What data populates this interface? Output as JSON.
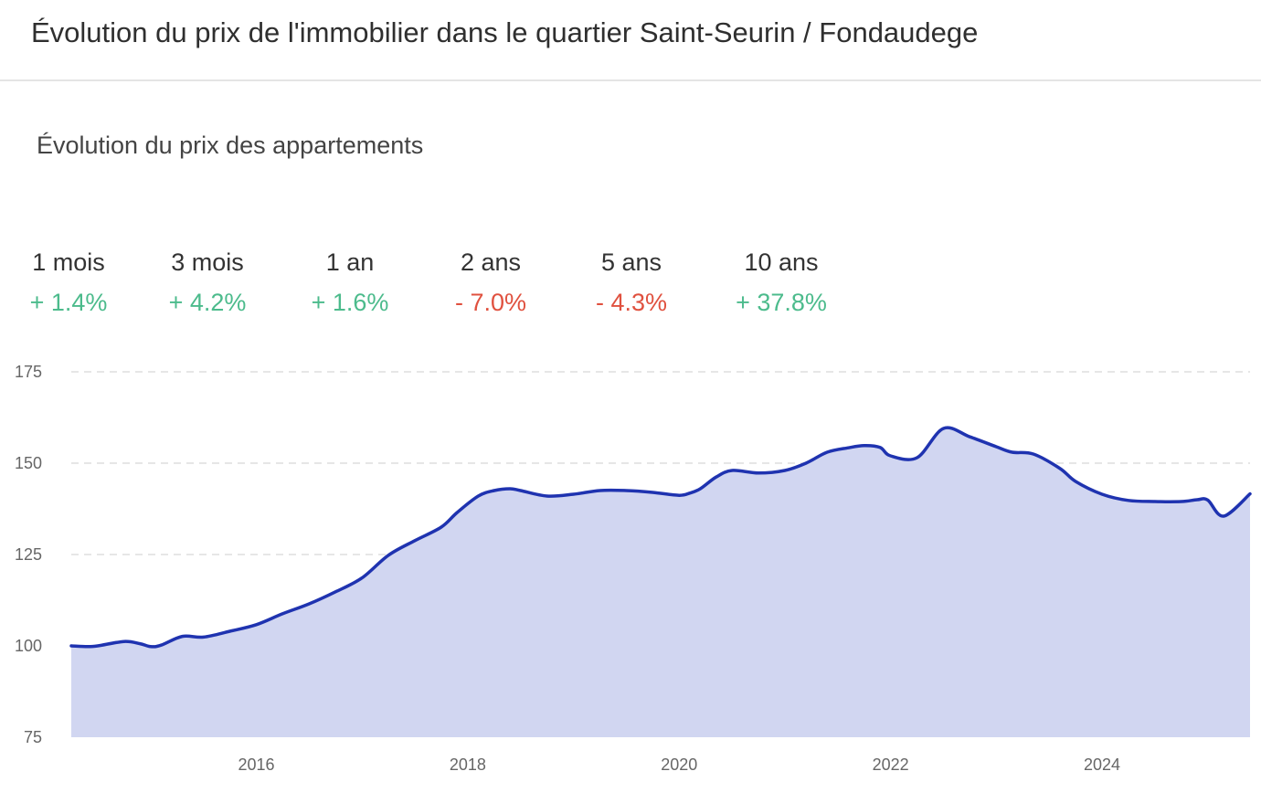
{
  "header": {
    "title": "Évolution du prix de l'immobilier dans le quartier Saint-Seurin / Fondaudege"
  },
  "subtitle": "Évolution du prix des appartements",
  "stats": [
    {
      "label": "1 mois",
      "value": "+ 1.4%",
      "trend": "up"
    },
    {
      "label": "3 mois",
      "value": "+ 4.2%",
      "trend": "up"
    },
    {
      "label": "1 an",
      "value": "+ 1.6%",
      "trend": "up"
    },
    {
      "label": "2 ans",
      "value": "- 7.0%",
      "trend": "down"
    },
    {
      "label": "5 ans",
      "value": "- 4.3%",
      "trend": "down"
    },
    {
      "label": "10 ans",
      "value": "+ 37.8%",
      "trend": "up"
    }
  ],
  "colors": {
    "up": "#4cbb8c",
    "down": "#e0513f",
    "line": "#1f33b0",
    "area": "#d1d6f1",
    "grid": "#dddddd"
  },
  "chart_data": {
    "type": "area",
    "title": "",
    "xlabel": "",
    "ylabel": "",
    "ylim": [
      75,
      175
    ],
    "yticks": [
      175,
      150,
      125,
      100,
      75
    ],
    "xlim": [
      2014.25,
      2025.4
    ],
    "xticks": [
      2016,
      2018,
      2020,
      2022,
      2024
    ],
    "grid": true,
    "series": [
      {
        "x": [
          2014.25,
          2014.4,
          2014.5,
          2014.75,
          2014.9,
          2015.0,
          2015.1,
          2015.3,
          2015.5,
          2015.75,
          2016.0,
          2016.25,
          2016.5,
          2016.75,
          2017.0,
          2017.25,
          2017.5,
          2017.75,
          2017.9,
          2018.1,
          2018.25,
          2018.4,
          2018.5,
          2018.75,
          2019.0,
          2019.25,
          2019.5,
          2019.75,
          2020.0,
          2020.1,
          2020.2,
          2020.35,
          2020.5,
          2020.75,
          2021.0,
          2021.2,
          2021.4,
          2021.6,
          2021.75,
          2021.9,
          2022.0,
          2022.25,
          2022.5,
          2022.75,
          2023.0,
          2023.15,
          2023.35,
          2023.6,
          2023.75,
          2024.0,
          2024.25,
          2024.5,
          2024.75,
          2024.9,
          2025.0,
          2025.15,
          2025.4
        ],
        "values": [
          100,
          99.8,
          100,
          101.2,
          100.6,
          99.8,
          100.2,
          102.6,
          102.4,
          104.0,
          105.8,
          108.8,
          111.5,
          114.8,
          118.6,
          124.8,
          128.8,
          132.5,
          136.5,
          141.0,
          142.5,
          143.0,
          142.5,
          141.0,
          141.5,
          142.5,
          142.5,
          142.0,
          141.2,
          141.8,
          143.0,
          146.2,
          148.0,
          147.3,
          148.0,
          150.0,
          153.0,
          154.2,
          154.8,
          154.3,
          152.0,
          151.5,
          159.5,
          157.2,
          154.5,
          153.0,
          152.5,
          148.6,
          145.0,
          141.5,
          139.8,
          139.5,
          139.5,
          140.0,
          139.9,
          135.5,
          141.6
        ]
      }
    ]
  }
}
